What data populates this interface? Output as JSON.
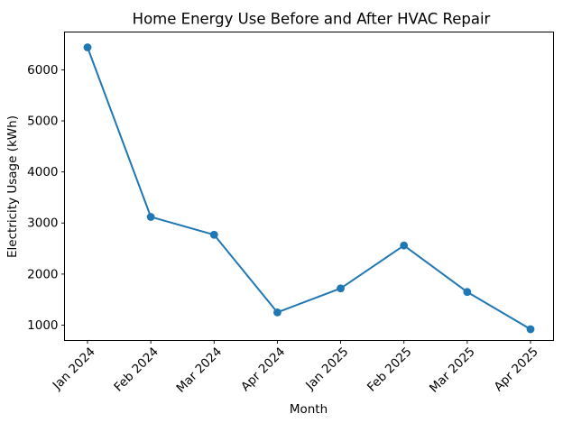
{
  "figure": {
    "background": "#ffffff",
    "axes_edge_color": "#000000",
    "text_color": "#000000"
  },
  "chart_data": {
    "type": "line",
    "title": "Home Energy Use Before and After HVAC Repair",
    "xlabel": "Month",
    "ylabel": "Electricity Usage (kWh)",
    "categories": [
      "Jan 2024",
      "Feb 2024",
      "Mar 2024",
      "Apr 2024",
      "Jan 2025",
      "Feb 2025",
      "Mar 2025",
      "Apr 2025"
    ],
    "series": [
      {
        "name": "Electricity Usage",
        "values": [
          6440,
          3120,
          2770,
          1250,
          1720,
          2560,
          1650,
          920
        ],
        "color": "#1f77b4",
        "marker": "circle"
      }
    ],
    "yticks": [
      1000,
      2000,
      3000,
      4000,
      5000,
      6000
    ],
    "ylim": [
      700,
      6740
    ],
    "x_tick_rotation": 45,
    "grid": false,
    "legend_position": "none"
  }
}
